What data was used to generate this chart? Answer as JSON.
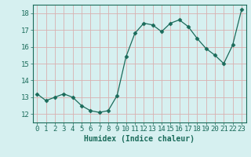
{
  "x": [
    0,
    1,
    2,
    3,
    4,
    5,
    6,
    7,
    8,
    9,
    10,
    11,
    12,
    13,
    14,
    15,
    16,
    17,
    18,
    19,
    20,
    21,
    22,
    23
  ],
  "y": [
    13.2,
    12.8,
    13.0,
    13.2,
    13.0,
    12.5,
    12.2,
    12.1,
    12.2,
    13.1,
    15.4,
    16.8,
    17.4,
    17.3,
    16.9,
    17.4,
    17.6,
    17.2,
    16.5,
    15.9,
    15.5,
    15.0,
    16.1,
    18.2
  ],
  "line_color": "#1a6b5a",
  "marker": "D",
  "marker_size": 2.5,
  "bg_color": "#d6f0f0",
  "grid_color": "#d9b0b0",
  "tick_color": "#1a6b5a",
  "label_color": "#1a6b5a",
  "xlabel": "Humidex (Indice chaleur)",
  "xlim": [
    -0.5,
    23.5
  ],
  "ylim": [
    11.5,
    18.5
  ],
  "yticks": [
    12,
    13,
    14,
    15,
    16,
    17,
    18
  ],
  "xticks": [
    0,
    1,
    2,
    3,
    4,
    5,
    6,
    7,
    8,
    9,
    10,
    11,
    12,
    13,
    14,
    15,
    16,
    17,
    18,
    19,
    20,
    21,
    22,
    23
  ],
  "xlabel_fontsize": 7,
  "tick_fontsize": 6.5
}
